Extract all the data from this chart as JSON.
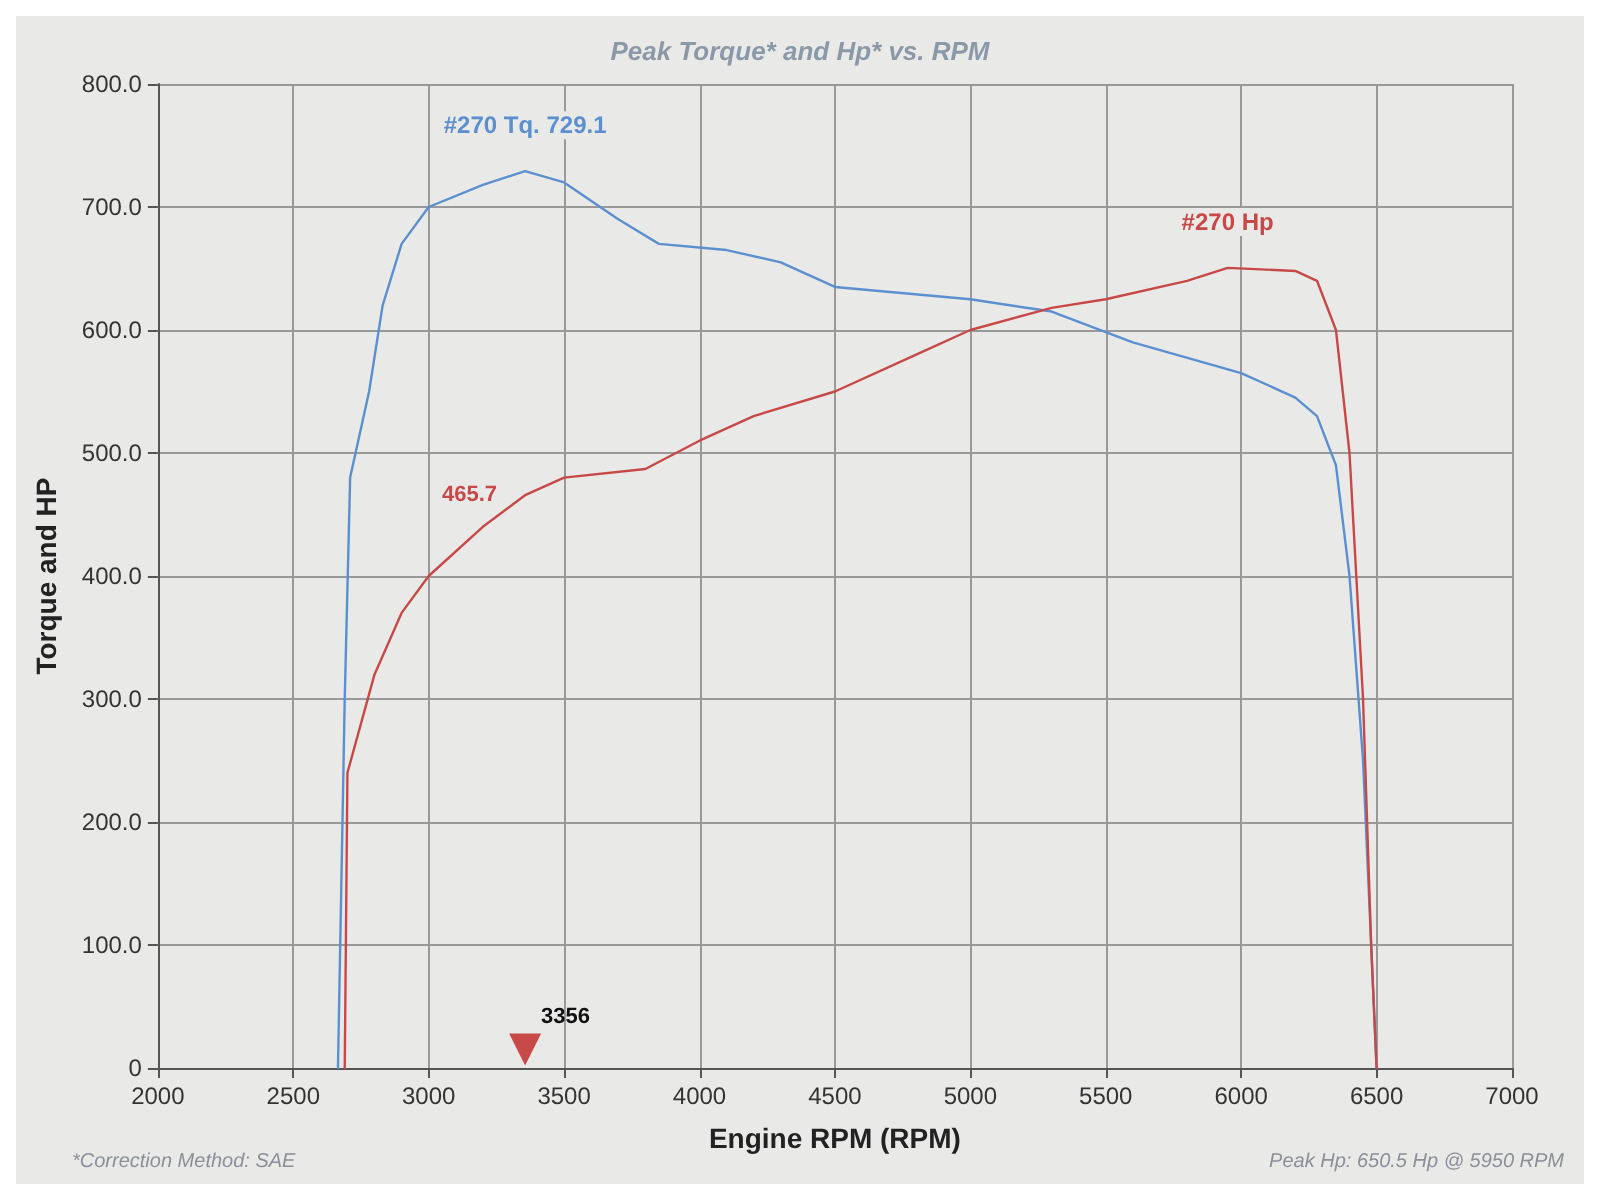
{
  "chart_data": {
    "type": "line",
    "title": "Peak Torque* and Hp* vs. RPM",
    "xlabel": "Engine RPM (RPM)",
    "ylabel": "Torque and HP",
    "xlim": [
      2000,
      7000
    ],
    "xticks": [
      2000,
      2500,
      3000,
      3500,
      4000,
      4500,
      5000,
      5500,
      6000,
      6500,
      7000
    ],
    "ylim": [
      0,
      800
    ],
    "yticks": [
      {
        "value": 0,
        "label": "0"
      },
      {
        "value": 100,
        "label": "100.0"
      },
      {
        "value": 200,
        "label": "200.0"
      },
      {
        "value": 300,
        "label": "300.0"
      },
      {
        "value": 400,
        "label": "400.0"
      },
      {
        "value": 500,
        "label": "500.0"
      },
      {
        "value": 600,
        "label": "600.0"
      },
      {
        "value": 700,
        "label": "700.0"
      },
      {
        "value": 800,
        "label": "800.0"
      }
    ],
    "grid": true,
    "legend": false,
    "marker": "none",
    "line_style": "solid",
    "series": [
      {
        "name": "#270 Tq. 729.1",
        "color": "#5b8fd0",
        "x": [
          2665,
          2690,
          2710,
          2780,
          2830,
          2900,
          3000,
          3200,
          3356,
          3500,
          3700,
          3850,
          4100,
          4300,
          4500,
          5000,
          5300,
          5600,
          6000,
          6200,
          6280,
          6350,
          6400,
          6450,
          6500
        ],
        "values": [
          0,
          300,
          480,
          550,
          620,
          670,
          700,
          718,
          729.1,
          720,
          690,
          670,
          665,
          655,
          635,
          625,
          615,
          590,
          565,
          545,
          530,
          490,
          400,
          250,
          0
        ]
      },
      {
        "name": "#270 Hp",
        "color": "#c84848",
        "x": [
          2690,
          2700,
          2750,
          2800,
          2900,
          3000,
          3200,
          3356,
          3500,
          3800,
          4000,
          4200,
          4500,
          4800,
          5000,
          5300,
          5500,
          5800,
          5950,
          6200,
          6280,
          6350,
          6400,
          6450,
          6480,
          6500
        ],
        "values": [
          0,
          240,
          280,
          320,
          370,
          400,
          440,
          465.7,
          480,
          487,
          510,
          530,
          550,
          580,
          600,
          618,
          625,
          640,
          650.5,
          648,
          640,
          600,
          500,
          300,
          100,
          0
        ]
      },
      {
        "type": "scatter",
        "color": "#c02020",
        "marker": "triangle",
        "x": [
          3356
        ],
        "values": [
          15
        ]
      }
    ],
    "annotations": [
      {
        "text": "465.7",
        "x": 3356,
        "y": 465.7
      },
      {
        "text": "3356",
        "x": 3356,
        "y": 15
      },
      "*Correction Method: SAE",
      "Peak Hp: 650.5 Hp @ 5950 RPM"
    ]
  }
}
